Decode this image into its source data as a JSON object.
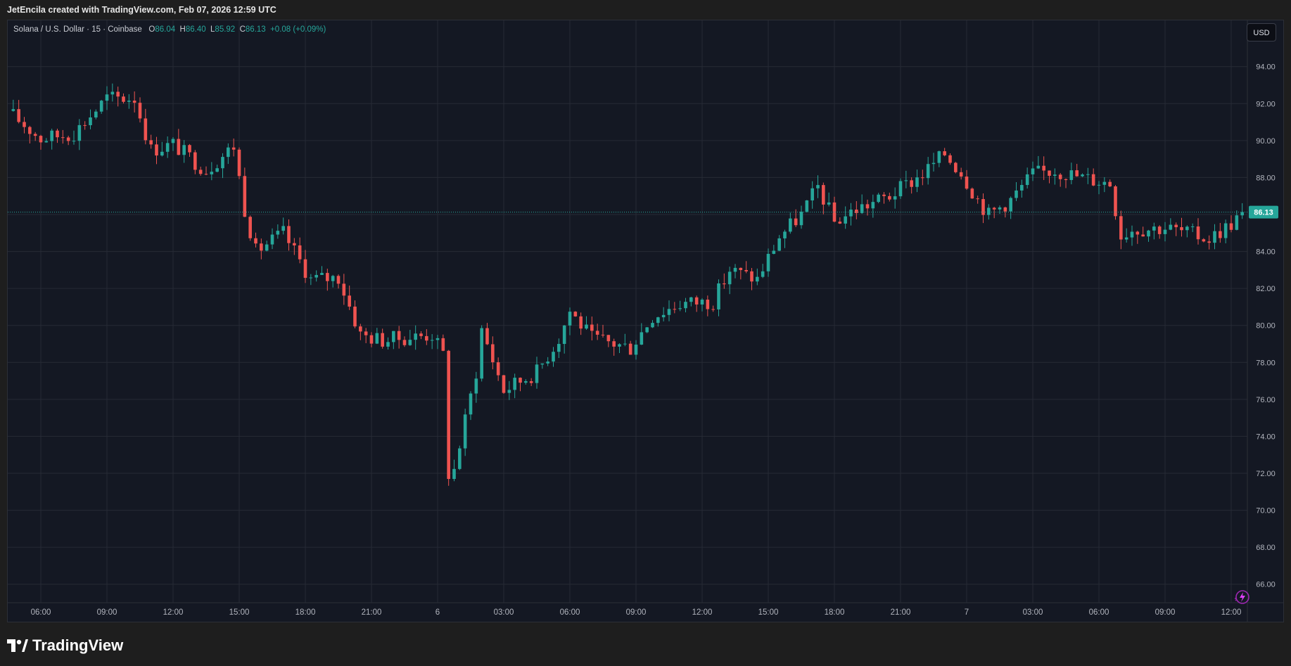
{
  "header": {
    "attribution": "JetEncila created with TradingView.com, Feb 07, 2026 12:59 UTC"
  },
  "legend": {
    "symbol": "Solana / U.S. Dollar · 15 · Coinbase",
    "o_label": "O",
    "o_value": "86.04",
    "h_label": "H",
    "h_value": "86.40",
    "l_label": "L",
    "l_value": "85.92",
    "c_label": "C",
    "c_value": "86.13",
    "change": "+0.08 (+0.09%)"
  },
  "currency_button": {
    "label": "USD"
  },
  "footer": {
    "brand": "TradingView"
  },
  "colors": {
    "up": "#26a69a",
    "down": "#ef5350",
    "background": "#141823",
    "grid": "#262a35",
    "text": "#b2b5be",
    "last_price_line": "#26a69a",
    "last_price_badge": "#26a69a"
  },
  "icons": {
    "logo": "tradingview-logo-icon",
    "zap": "lightning-icon"
  },
  "chart_data": {
    "type": "candlestick",
    "title": "Solana / U.S. Dollar · 15 · Coinbase",
    "ylim": [
      65,
      96.5
    ],
    "y_ticks": [
      "94.00",
      "92.00",
      "90.00",
      "88.00",
      "86.00",
      "84.00",
      "82.00",
      "80.00",
      "78.00",
      "76.00",
      "74.00",
      "72.00",
      "70.00",
      "68.00",
      "66.00"
    ],
    "x_tick_labels": [
      "06:00",
      "09:00",
      "12:00",
      "15:00",
      "18:00",
      "21:00",
      "6",
      "03:00",
      "06:00",
      "09:00",
      "12:00",
      "15:00",
      "18:00",
      "21:00",
      "7",
      "03:00",
      "06:00",
      "09:00",
      "12:00"
    ],
    "last_price": 86.13,
    "last_price_label": "86.13",
    "grid": true,
    "description_note": "",
    "anchors": [
      [
        "Feb 5 04:30",
        91.6
      ],
      [
        "Feb 5 06:00",
        90.1
      ],
      [
        "Feb 5 07:30",
        90.4
      ],
      [
        "Feb 5 09:00",
        92.3
      ],
      [
        "Feb 5 10:15",
        92.3
      ],
      [
        "Feb 5 11:00",
        89.5
      ],
      [
        "Feb 5 12:00",
        89.8
      ],
      [
        "Feb 5 13:30",
        88.4
      ],
      [
        "Feb 5 14:45",
        89.7
      ],
      [
        "Feb 5 15:15",
        86.3
      ],
      [
        "Feb 5 15:45",
        84.0
      ],
      [
        "Feb 5 17:00",
        85.0
      ],
      [
        "Feb 5 18:15",
        82.5
      ],
      [
        "Feb 5 19:30",
        82.6
      ],
      [
        "Feb 5 20:30",
        79.5
      ],
      [
        "Feb 5 21:30",
        79.2
      ],
      [
        "Feb 5 23:00",
        79.4
      ],
      [
        "Feb 5 23:45",
        79.5
      ],
      [
        "Feb 6 00:15",
        78.4
      ],
      [
        "Feb 6 00:30",
        72.0
      ],
      [
        "Feb 6 00:45",
        72.2
      ],
      [
        "Feb 6 01:45",
        77.5
      ],
      [
        "Feb 6 02:00",
        79.8
      ],
      [
        "Feb 6 03:00",
        76.5
      ],
      [
        "Feb 6 04:30",
        77.5
      ],
      [
        "Feb 6 05:30",
        79.3
      ],
      [
        "Feb 6 06:00",
        80.8
      ],
      [
        "Feb 6 07:00",
        79.3
      ],
      [
        "Feb 6 08:45",
        78.8
      ],
      [
        "Feb 6 09:45",
        80.5
      ],
      [
        "Feb 6 11:00",
        81.2
      ],
      [
        "Feb 6 12:30",
        81.3
      ],
      [
        "Feb 6 13:15",
        83.0
      ],
      [
        "Feb 6 14:30",
        82.5
      ],
      [
        "Feb 6 15:30",
        84.8
      ],
      [
        "Feb 6 16:30",
        86.0
      ],
      [
        "Feb 6 17:15",
        87.5
      ],
      [
        "Feb 6 18:00",
        85.6
      ],
      [
        "Feb 6 19:00",
        86.3
      ],
      [
        "Feb 6 20:30",
        87.0
      ],
      [
        "Feb 6 22:00",
        88.2
      ],
      [
        "Feb 6 23:00",
        89.3
      ],
      [
        "Feb 6 23:45",
        88.3
      ],
      [
        "Feb 7 00:30",
        86.8
      ],
      [
        "Feb 7 01:00",
        86.0
      ],
      [
        "Feb 7 02:00",
        86.8
      ],
      [
        "Feb 7 03:00",
        88.2
      ],
      [
        "Feb 7 04:00",
        88.4
      ],
      [
        "Feb 7 05:15",
        88.0
      ],
      [
        "Feb 7 06:30",
        87.7
      ],
      [
        "Feb 7 07:00",
        84.9
      ],
      [
        "Feb 7 07:30",
        85.2
      ],
      [
        "Feb 7 09:00",
        85.3
      ],
      [
        "Feb 7 11:00",
        84.7
      ],
      [
        "Feb 7 12:00",
        85.5
      ],
      [
        "Feb 7 12:30",
        86.13
      ]
    ]
  }
}
